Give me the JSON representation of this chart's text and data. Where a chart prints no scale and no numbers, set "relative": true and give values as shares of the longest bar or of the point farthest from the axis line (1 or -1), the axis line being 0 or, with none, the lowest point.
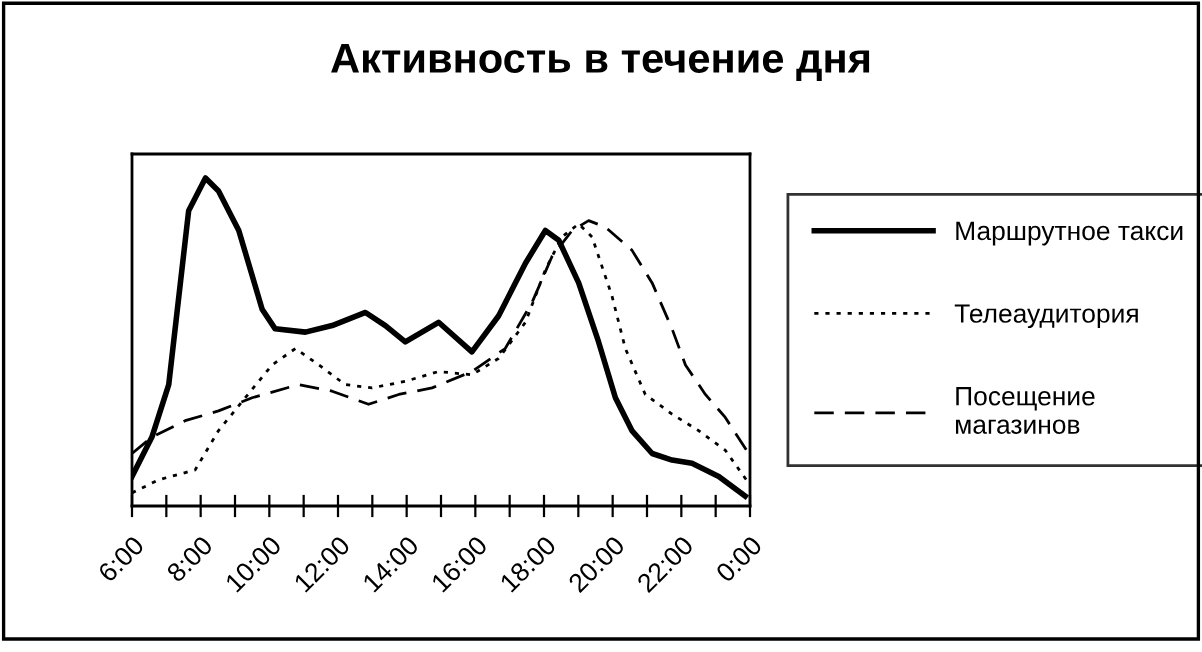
{
  "chart_data": {
    "type": "line",
    "title": "Активность в течение дня",
    "relative": true,
    "legend": "right",
    "grid": false,
    "marker": "none",
    "xlim": [
      6,
      24
    ],
    "xticks": [
      {
        "value": 6,
        "label": "6:00"
      },
      {
        "value": 7,
        "label": null
      },
      {
        "value": 8,
        "label": "8:00"
      },
      {
        "value": 9,
        "label": null
      },
      {
        "value": 10,
        "label": "10:00"
      },
      {
        "value": 11,
        "label": null
      },
      {
        "value": 12,
        "label": "12:00"
      },
      {
        "value": 13,
        "label": null
      },
      {
        "value": 14,
        "label": "14:00"
      },
      {
        "value": 15,
        "label": null
      },
      {
        "value": 16,
        "label": "16:00"
      },
      {
        "value": 17,
        "label": null
      },
      {
        "value": 18,
        "label": "18:00"
      },
      {
        "value": 19,
        "label": null
      },
      {
        "value": 20,
        "label": "20:00"
      },
      {
        "value": 21,
        "label": null
      },
      {
        "value": 22,
        "label": "22:00"
      },
      {
        "value": 23,
        "label": null
      },
      {
        "value": 24,
        "label": "0:00"
      }
    ],
    "series": [
      {
        "name": "Маршрутное такси",
        "color": "#000000",
        "line_style": "solid",
        "x": [
          6.0,
          6.58,
          7.07,
          7.65,
          8.14,
          8.52,
          9.11,
          9.79,
          10.17,
          11.05,
          11.83,
          12.8,
          13.38,
          13.96,
          14.93,
          15.9,
          16.68,
          17.46,
          18.04,
          18.43,
          19.01,
          19.59,
          20.08,
          20.56,
          21.15,
          21.73,
          22.31,
          23.09,
          23.86
        ],
        "values": [
          0.09,
          0.21,
          0.37,
          0.9,
          1.0,
          0.96,
          0.84,
          0.6,
          0.54,
          0.53,
          0.55,
          0.59,
          0.55,
          0.5,
          0.56,
          0.47,
          0.58,
          0.74,
          0.84,
          0.81,
          0.68,
          0.5,
          0.33,
          0.23,
          0.16,
          0.14,
          0.13,
          0.09,
          0.03
        ]
      },
      {
        "name": "Телеаудитория",
        "color": "#000000",
        "line_style": "dotted",
        "x": [
          6.0,
          6.78,
          7.84,
          8.52,
          9.3,
          10.08,
          10.76,
          11.44,
          12.21,
          12.99,
          13.96,
          14.93,
          15.9,
          16.68,
          17.46,
          18.04,
          18.52,
          19.01,
          19.4,
          19.98,
          20.37,
          20.95,
          21.73,
          22.5,
          23.28,
          23.96
        ],
        "values": [
          0.04,
          0.08,
          0.11,
          0.23,
          0.33,
          0.43,
          0.48,
          0.43,
          0.37,
          0.36,
          0.38,
          0.41,
          0.4,
          0.45,
          0.56,
          0.72,
          0.82,
          0.86,
          0.82,
          0.64,
          0.48,
          0.34,
          0.28,
          0.23,
          0.17,
          0.07
        ]
      },
      {
        "name": "Посещение магазинов",
        "color": "#000000",
        "line_style": "dashed",
        "x": [
          6.0,
          6.58,
          7.55,
          8.52,
          9.5,
          10.85,
          11.83,
          12.89,
          13.77,
          14.74,
          15.9,
          16.87,
          17.65,
          18.23,
          18.82,
          19.3,
          19.79,
          20.56,
          21.15,
          21.73,
          22.12,
          22.7,
          23.28,
          23.96
        ],
        "values": [
          0.16,
          0.21,
          0.26,
          0.29,
          0.33,
          0.37,
          0.35,
          0.31,
          0.34,
          0.36,
          0.41,
          0.48,
          0.62,
          0.76,
          0.84,
          0.87,
          0.85,
          0.78,
          0.68,
          0.54,
          0.43,
          0.34,
          0.27,
          0.16
        ]
      }
    ]
  }
}
